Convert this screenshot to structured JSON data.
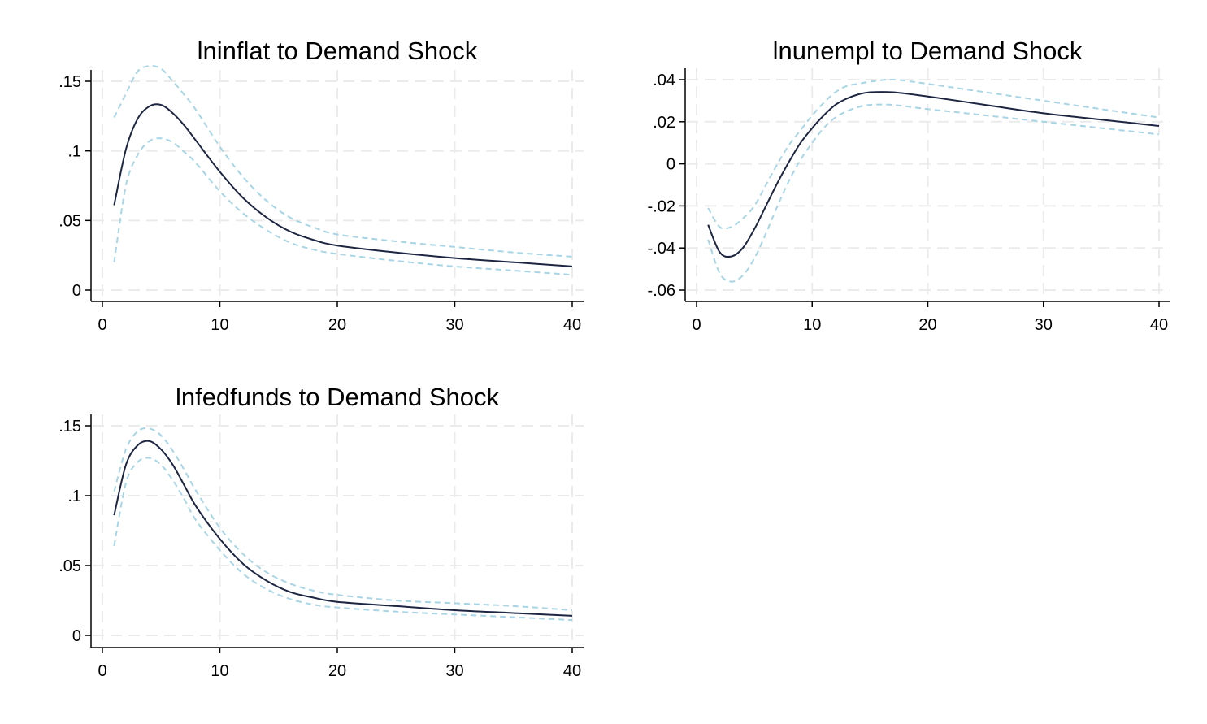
{
  "chart_data": [
    {
      "type": "line",
      "title": "lninflat to Demand Shock",
      "xlim": [
        0,
        40
      ],
      "ylim": [
        0,
        0.16
      ],
      "xticks": [
        0,
        10,
        20,
        30,
        40
      ],
      "xtick_labels": [
        "0",
        "10",
        "20",
        "30",
        "40"
      ],
      "yticks": [
        0,
        0.05,
        0.1,
        0.15
      ],
      "ytick_labels": [
        "0",
        ".05",
        ".1",
        ".15"
      ],
      "grid": true,
      "x": [
        1,
        2,
        3,
        4,
        5,
        6,
        7,
        8,
        10,
        12,
        14,
        16,
        18,
        20,
        25,
        30,
        35,
        40
      ],
      "series": [
        {
          "role": "irf",
          "values": [
            0.061,
            0.101,
            0.123,
            0.132,
            0.133,
            0.127,
            0.118,
            0.107,
            0.085,
            0.066,
            0.052,
            0.042,
            0.036,
            0.032,
            0.027,
            0.023,
            0.02,
            0.017
          ]
        },
        {
          "role": "ci-upper",
          "values": [
            0.124,
            0.141,
            0.157,
            0.161,
            0.159,
            0.15,
            0.14,
            0.129,
            0.103,
            0.081,
            0.064,
            0.052,
            0.045,
            0.04,
            0.035,
            0.031,
            0.027,
            0.024
          ]
        },
        {
          "role": "ci-lower",
          "values": [
            0.02,
            0.075,
            0.097,
            0.107,
            0.109,
            0.106,
            0.099,
            0.091,
            0.071,
            0.055,
            0.043,
            0.034,
            0.029,
            0.026,
            0.021,
            0.017,
            0.014,
            0.011
          ]
        }
      ]
    },
    {
      "type": "line",
      "title": "lnunempl to Demand Shock",
      "xlim": [
        0,
        40
      ],
      "ylim": [
        -0.06,
        0.04
      ],
      "xticks": [
        0,
        10,
        20,
        30,
        40
      ],
      "xtick_labels": [
        "0",
        "10",
        "20",
        "30",
        "40"
      ],
      "yticks": [
        -0.06,
        -0.04,
        -0.02,
        0,
        0.02,
        0.04
      ],
      "ytick_labels": [
        "-.06",
        "-.04",
        "-.02",
        "0",
        ".02",
        ".04"
      ],
      "grid": true,
      "x": [
        1,
        2,
        3,
        4,
        5,
        6,
        7,
        8,
        9,
        10,
        11,
        12,
        13,
        14,
        15,
        17,
        20,
        25,
        30,
        35,
        40
      ],
      "series": [
        {
          "role": "irf",
          "values": [
            -0.029,
            -0.042,
            -0.044,
            -0.04,
            -0.031,
            -0.02,
            -0.009,
            0.001,
            0.01,
            0.017,
            0.023,
            0.028,
            0.031,
            0.033,
            0.034,
            0.034,
            0.032,
            0.028,
            0.024,
            0.021,
            0.018
          ]
        },
        {
          "role": "ci-upper",
          "values": [
            -0.021,
            -0.03,
            -0.03,
            -0.026,
            -0.02,
            -0.01,
            0.0,
            0.009,
            0.016,
            0.023,
            0.029,
            0.034,
            0.037,
            0.038,
            0.039,
            0.04,
            0.038,
            0.034,
            0.03,
            0.026,
            0.022
          ]
        },
        {
          "role": "ci-lower",
          "values": [
            -0.036,
            -0.052,
            -0.056,
            -0.053,
            -0.045,
            -0.033,
            -0.02,
            -0.008,
            0.002,
            0.01,
            0.017,
            0.022,
            0.025,
            0.027,
            0.028,
            0.028,
            0.026,
            0.023,
            0.02,
            0.017,
            0.014
          ]
        }
      ]
    },
    {
      "type": "line",
      "title": "lnfedfunds to Demand Shock",
      "xlim": [
        0,
        40
      ],
      "ylim": [
        0,
        0.15
      ],
      "xticks": [
        0,
        10,
        20,
        30,
        40
      ],
      "xtick_labels": [
        "0",
        "10",
        "20",
        "30",
        "40"
      ],
      "yticks": [
        0,
        0.05,
        0.1,
        0.15
      ],
      "ytick_labels": [
        "0",
        ".05",
        ".1",
        ".15"
      ],
      "grid": true,
      "x": [
        1,
        2,
        3,
        4,
        5,
        6,
        7,
        8,
        10,
        12,
        14,
        16,
        18,
        20,
        25,
        30,
        35,
        40
      ],
      "series": [
        {
          "role": "irf",
          "values": [
            0.086,
            0.122,
            0.136,
            0.139,
            0.133,
            0.122,
            0.107,
            0.092,
            0.069,
            0.051,
            0.039,
            0.031,
            0.027,
            0.024,
            0.021,
            0.018,
            0.016,
            0.014
          ]
        },
        {
          "role": "ci-upper",
          "values": [
            0.103,
            0.133,
            0.146,
            0.148,
            0.143,
            0.132,
            0.118,
            0.103,
            0.077,
            0.058,
            0.045,
            0.037,
            0.032,
            0.029,
            0.025,
            0.023,
            0.021,
            0.018
          ]
        },
        {
          "role": "ci-lower",
          "values": [
            0.064,
            0.109,
            0.124,
            0.127,
            0.122,
            0.111,
            0.097,
            0.082,
            0.061,
            0.044,
            0.033,
            0.026,
            0.022,
            0.02,
            0.017,
            0.015,
            0.013,
            0.011
          ]
        }
      ]
    }
  ],
  "colors": {
    "irf_line": "#1c2541",
    "ci_line": "#a8d5e5",
    "grid": "#ebebeb"
  }
}
